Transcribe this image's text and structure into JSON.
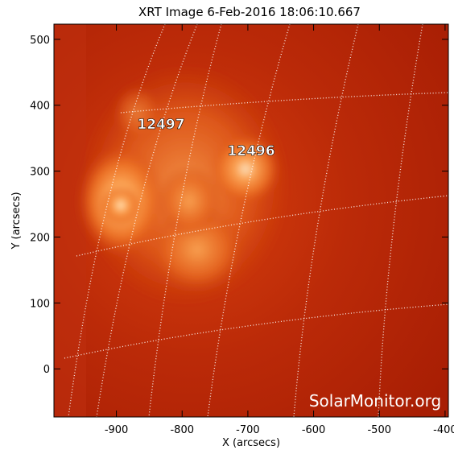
{
  "chart_data": {
    "type": "image",
    "title": "XRT Image   6-Feb-2016 18:06:10.667",
    "x_label": "X (arcsecs)",
    "y_label": "Y (arcsecs)",
    "xlim": [
      -995,
      -395
    ],
    "ylim": [
      -73,
      523
    ],
    "xticks": [
      -900,
      -800,
      -700,
      -600,
      -500,
      -400
    ],
    "yticks": [
      0,
      100,
      200,
      300,
      400,
      500
    ],
    "annotations": [
      "12497",
      "12496"
    ],
    "watermark": "SolarMonitor.org"
  }
}
